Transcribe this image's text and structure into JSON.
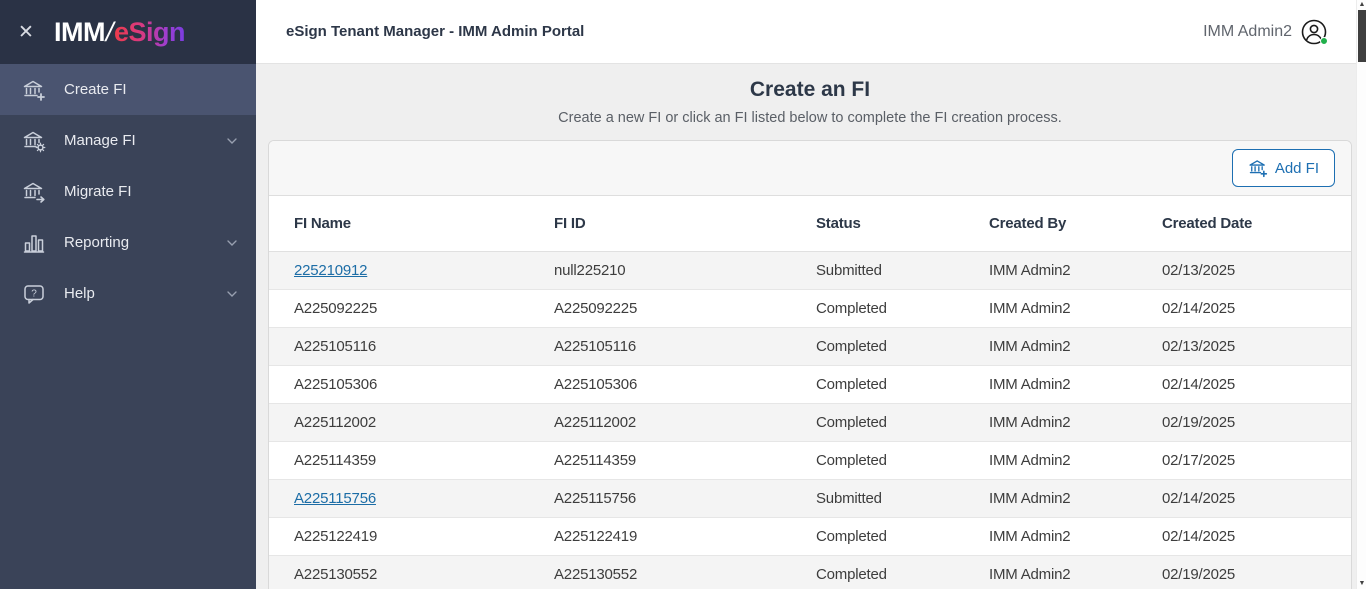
{
  "brand": {
    "imm": "IMM",
    "slash": "/",
    "esign": "eSign"
  },
  "sidebar": {
    "items": [
      {
        "label": "Create FI",
        "icon": "bank-plus-icon",
        "active": true,
        "chevron": false
      },
      {
        "label": "Manage FI",
        "icon": "bank-gear-icon",
        "active": false,
        "chevron": true
      },
      {
        "label": "Migrate FI",
        "icon": "bank-arrow-icon",
        "active": false,
        "chevron": false
      },
      {
        "label": "Reporting",
        "icon": "bar-chart-icon",
        "active": false,
        "chevron": true
      },
      {
        "label": "Help",
        "icon": "question-bubble-icon",
        "active": false,
        "chevron": true
      }
    ]
  },
  "topbar": {
    "title": "eSign Tenant Manager - IMM Admin Portal",
    "user_name": "IMM Admin2"
  },
  "page": {
    "title": "Create an FI",
    "subtitle": "Create a new FI or click an FI listed below to complete the FI creation process.",
    "add_button_label": "Add FI"
  },
  "table": {
    "columns": [
      "FI Name",
      "FI ID",
      "Status",
      "Created By",
      "Created Date"
    ],
    "rows": [
      {
        "fi_name": "225210912",
        "fi_id": "null225210",
        "status": "Submitted",
        "created_by": "IMM Admin2",
        "created_date": "02/13/2025",
        "name_is_link": true
      },
      {
        "fi_name": "A225092225",
        "fi_id": "A225092225",
        "status": "Completed",
        "created_by": "IMM Admin2",
        "created_date": "02/14/2025",
        "name_is_link": false
      },
      {
        "fi_name": "A225105116",
        "fi_id": "A225105116",
        "status": "Completed",
        "created_by": "IMM Admin2",
        "created_date": "02/13/2025",
        "name_is_link": false
      },
      {
        "fi_name": "A225105306",
        "fi_id": "A225105306",
        "status": "Completed",
        "created_by": "IMM Admin2",
        "created_date": "02/14/2025",
        "name_is_link": false
      },
      {
        "fi_name": "A225112002",
        "fi_id": "A225112002",
        "status": "Completed",
        "created_by": "IMM Admin2",
        "created_date": "02/19/2025",
        "name_is_link": false
      },
      {
        "fi_name": "A225114359",
        "fi_id": "A225114359",
        "status": "Completed",
        "created_by": "IMM Admin2",
        "created_date": "02/17/2025",
        "name_is_link": false
      },
      {
        "fi_name": "A225115756",
        "fi_id": "A225115756",
        "status": "Submitted",
        "created_by": "IMM Admin2",
        "created_date": "02/14/2025",
        "name_is_link": true
      },
      {
        "fi_name": "A225122419",
        "fi_id": "A225122419",
        "status": "Completed",
        "created_by": "IMM Admin2",
        "created_date": "02/14/2025",
        "name_is_link": false
      },
      {
        "fi_name": "A225130552",
        "fi_id": "A225130552",
        "status": "Completed",
        "created_by": "IMM Admin2",
        "created_date": "02/19/2025",
        "name_is_link": false
      }
    ]
  },
  "colors": {
    "sidebar_bg": "#3a4358",
    "sidebar_logo_band_bg": "#2a3245",
    "sidebar_active_bg": "#4a5470",
    "brand_gradient_start": "#ee3b4a",
    "brand_gradient_end": "#7a3de0",
    "accent_blue": "#1d6fb2",
    "link_blue": "#1c6da6",
    "heading_navy": "#2d3848",
    "alt_row_gray": "#f4f4f4",
    "online_green": "#21b04b"
  }
}
